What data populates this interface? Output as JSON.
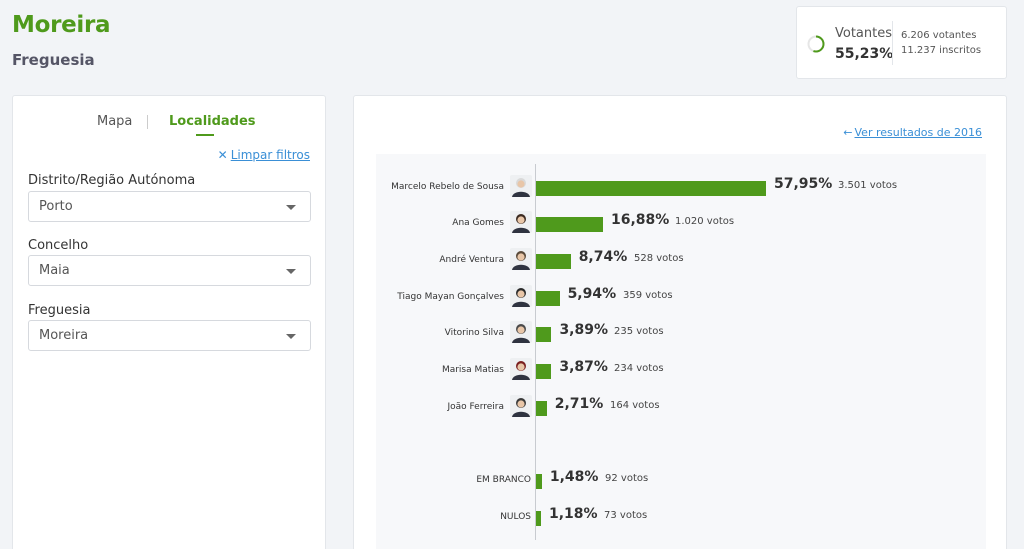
{
  "header": {
    "title": "Moreira",
    "subtitle": "Freguesia"
  },
  "turnout": {
    "label": "Votantes",
    "percent": "55,23%",
    "percent_value": 55.23,
    "voters": "6.206 votantes",
    "registered": "11.237 inscritos"
  },
  "filters": {
    "tabs": [
      "Mapa",
      "Localidades"
    ],
    "active_tab": "Localidades",
    "clear_icon": "x-icon",
    "clear_label": "Limpar filtros",
    "fields": [
      {
        "label": "Distrito/Região Autónoma",
        "value": "Porto"
      },
      {
        "label": "Concelho",
        "value": "Maia"
      },
      {
        "label": "Freguesia",
        "value": "Moreira"
      }
    ]
  },
  "results": {
    "previous_link": "Ver resultados de 2016",
    "previous_icon": "arrow-left-icon",
    "bar_color": "#4f9a1c"
  },
  "chart_data": {
    "type": "bar",
    "orientation": "horizontal",
    "categories": [
      "Marcelo Rebelo de Sousa",
      "Ana Gomes",
      "André Ventura",
      "Tiago Mayan Gonçalves",
      "Vitorino Silva",
      "Marisa Matias",
      "João Ferreira",
      "EM BRANCO",
      "NULOS"
    ],
    "values": [
      57.95,
      16.88,
      8.74,
      5.94,
      3.89,
      3.87,
      2.71,
      1.48,
      1.18
    ],
    "percent_labels": [
      "57,95%",
      "16,88%",
      "8,74%",
      "5,94%",
      "3,89%",
      "3,87%",
      "2,71%",
      "1,48%",
      "1,18%"
    ],
    "votes_labels": [
      "3.501 votos",
      "1.020 votos",
      "528 votos",
      "359 votos",
      "235 votos",
      "234 votos",
      "164 votos",
      "92 votos",
      "73 votos"
    ],
    "has_photo": [
      true,
      true,
      true,
      true,
      true,
      true,
      true,
      false,
      false
    ],
    "xlim": [
      0,
      100
    ]
  }
}
